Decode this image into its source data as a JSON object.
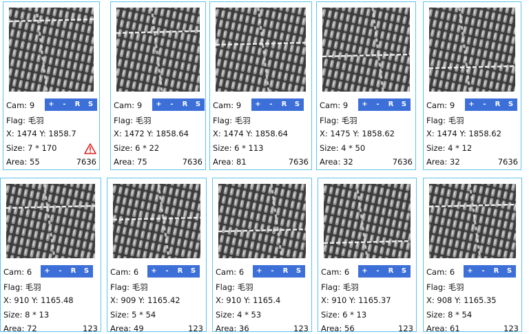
{
  "labels": {
    "cam": "Cam:",
    "flag": "Flag:",
    "x": "X:",
    "y": "Y:",
    "size": "Size:",
    "area": "Area:"
  },
  "buttons": [
    "+",
    "-",
    "R",
    "S"
  ],
  "cards": [
    {
      "cam": 9,
      "flag": "毛羽",
      "x": 1474,
      "y": 1858.7,
      "size": "7 * 170",
      "area": 55,
      "id": 7636
    },
    {
      "cam": 9,
      "flag": "毛羽",
      "x": 1472,
      "y": 1858.64,
      "size": "6 * 22",
      "area": 75,
      "id": 7636
    },
    {
      "cam": 9,
      "flag": "毛羽",
      "x": 1474,
      "y": 1858.64,
      "size": "6 * 113",
      "area": 81,
      "id": 7636
    },
    {
      "cam": 9,
      "flag": "毛羽",
      "x": 1475,
      "y": 1858.62,
      "size": "4 * 50",
      "area": 32,
      "id": 7636
    },
    {
      "cam": 9,
      "flag": "毛羽",
      "x": 1474,
      "y": 1858.62,
      "size": "4 * 12",
      "area": 32,
      "id": 7636
    },
    {
      "cam": 6,
      "flag": "毛羽",
      "x": 910,
      "y": 1165.48,
      "size": "8 * 13",
      "area": 72,
      "id": 123
    },
    {
      "cam": 6,
      "flag": "毛羽",
      "x": 909,
      "y": 1165.42,
      "size": "5 * 54",
      "area": 49,
      "id": 123
    },
    {
      "cam": 6,
      "flag": "毛羽",
      "x": 910,
      "y": 1165.4,
      "size": "4 * 53",
      "area": 36,
      "id": 123
    },
    {
      "cam": 6,
      "flag": "毛羽",
      "x": 910,
      "y": 1165.37,
      "size": "6 * 13",
      "area": 56,
      "id": 123
    },
    {
      "cam": 6,
      "flag": "毛羽",
      "x": 908,
      "y": 1165.35,
      "size": "8 * 54",
      "area": 61,
      "id": 123
    }
  ]
}
